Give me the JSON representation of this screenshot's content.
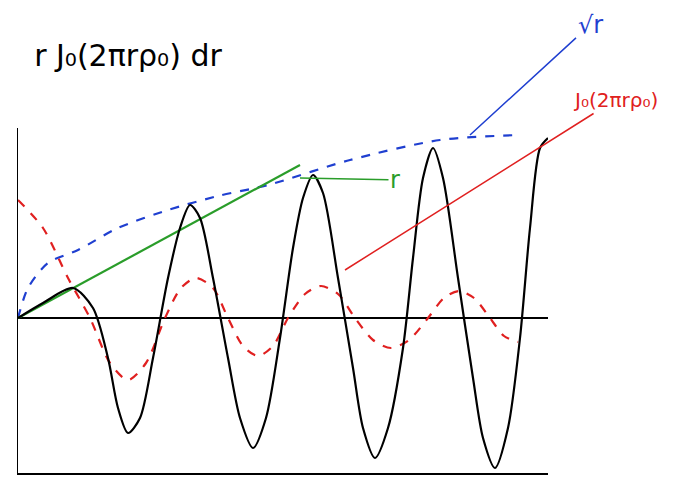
{
  "chart_data": {
    "type": "line",
    "title": "r J₀(2πrρ₀) dr",
    "xlim": [
      0,
      530
    ],
    "ylim": [
      -155,
      190
    ],
    "xticks": [],
    "yticks": [],
    "tick_labels": false,
    "grid": false,
    "series": [
      {
        "name": "√r",
        "color": "#1f3fd0",
        "line_style": "dashed",
        "x": [
          0,
          10,
          30,
          60,
          100,
          150,
          200,
          250,
          332,
          422,
          502
        ],
        "values": [
          0,
          30,
          55,
          68,
          90,
          108,
          122,
          133,
          158,
          178,
          183
        ]
      },
      {
        "name": "r",
        "color": "#2a9d2a",
        "line_style": "solid",
        "x": [
          0,
          282
        ],
        "values": [
          0,
          153
        ]
      },
      {
        "name": "J₀(2πrρ₀)",
        "color": "#e02020",
        "line_style": "dashed",
        "x": [
          0,
          25,
          50,
          72,
          92,
          110,
          128,
          147,
          163,
          178,
          195,
          210,
          225,
          240,
          255,
          270,
          287,
          303,
          320,
          337,
          355,
          373,
          391,
          410,
          426,
          441,
          456,
          472,
          486,
          500
        ],
        "values": [
          118,
          90,
          40,
          0,
          -45,
          -62,
          -45,
          0,
          30,
          40,
          30,
          0,
          -28,
          -38,
          -28,
          0,
          24,
          32,
          24,
          0,
          -22,
          -30,
          -22,
          0,
          20,
          27,
          20,
          0,
          -18,
          -24
        ]
      },
      {
        "name": "rJ₀(2πrρ₀)",
        "color": "#000000",
        "line_style": "solid",
        "x": [
          0,
          25,
          55,
          75,
          90,
          100,
          110,
          122,
          135,
          150,
          162,
          172,
          182,
          195,
          210,
          222,
          235,
          248,
          262,
          275,
          285,
          295,
          305,
          320,
          335,
          345,
          357,
          370,
          385,
          395,
          405,
          415,
          425,
          440,
          455,
          465,
          477,
          490,
          502,
          512,
          522,
          530
        ],
        "values": [
          0,
          15,
          30,
          10,
          -40,
          -90,
          -115,
          -100,
          -40,
          40,
          90,
          113,
          100,
          40,
          -40,
          -100,
          -130,
          -100,
          -20,
          70,
          120,
          143,
          125,
          40,
          -50,
          -110,
          -140,
          -110,
          -30,
          60,
          140,
          170,
          140,
          40,
          -60,
          -120,
          -150,
          -110,
          -20,
          90,
          170,
          180
        ]
      }
    ]
  }
}
